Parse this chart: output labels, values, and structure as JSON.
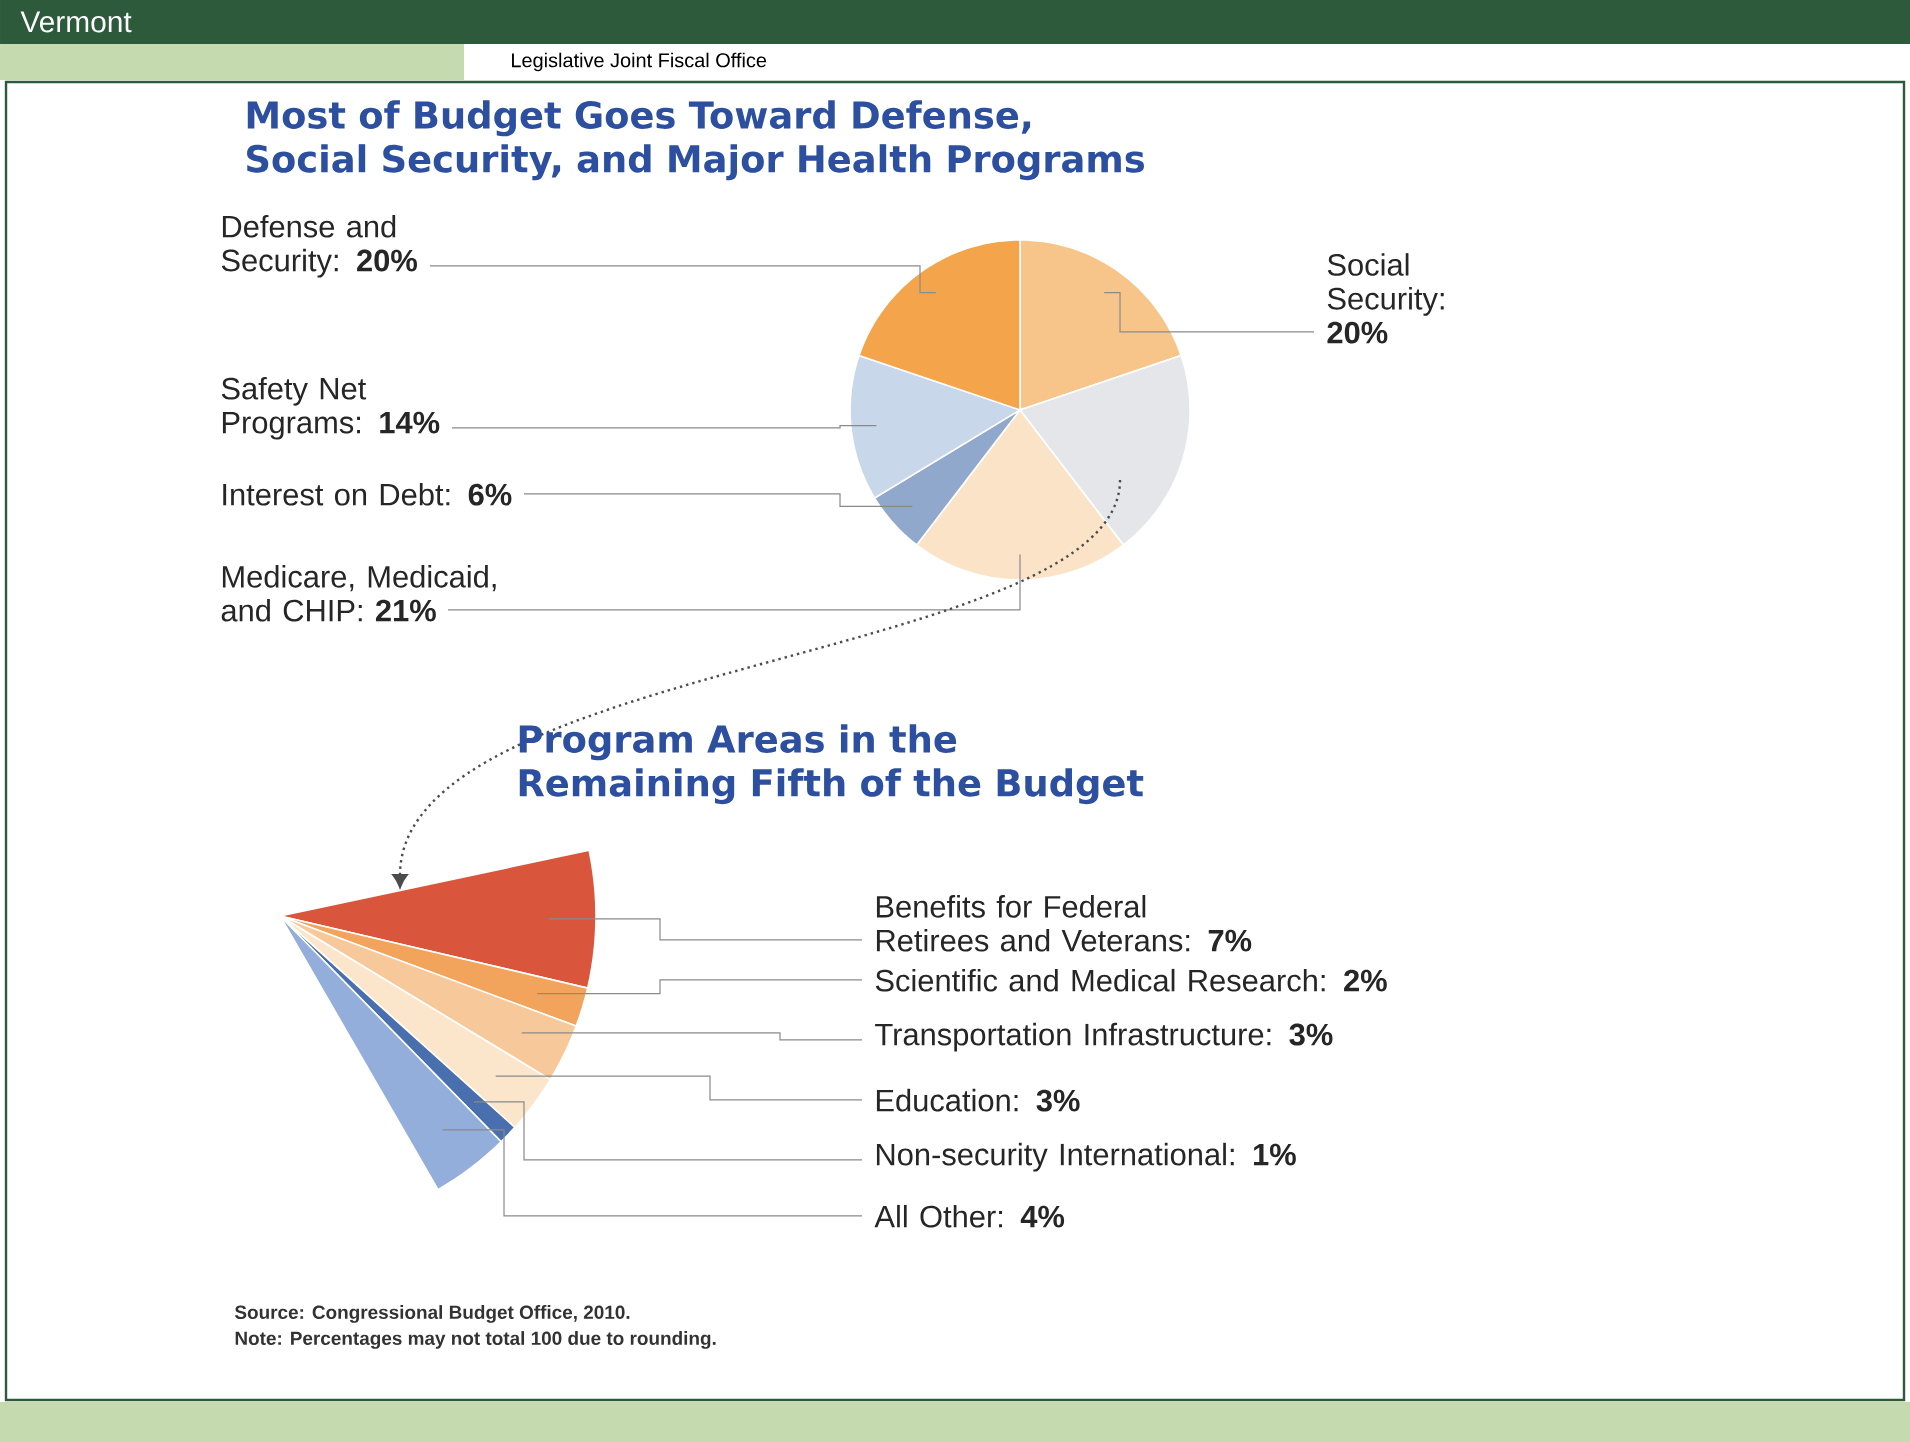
{
  "chart_data": [
    {
      "type": "pie",
      "title": "Most of Budget Goes Toward Defense, Social Security, and Major Health Programs",
      "categories": [
        "Social Security: **20%**",
        null,
        "Medicare, Medicaid, and CHIP: **21%**",
        "Interest on Debt: **6%**",
        "Safety Net Programs: **14%**",
        "Defense and Security: **20%**"
      ],
      "values": [
        20,
        20,
        21,
        6,
        14,
        20
      ],
      "colors": [
        "#f7c58a",
        "#e4e6ea",
        "#fbe3c8",
        "#8fa8cc",
        "#c9d7ea",
        "#f4a54c"
      ],
      "annotations": [
        "Vermont",
        "Legislative Joint Fiscal Office"
      ]
    },
    {
      "type": "pie",
      "title": "Program Areas in the Remaining Fifth of the Budget",
      "categories": [
        "Benefits for Federal Retirees and Veterans: **7%**",
        "Scientific and Medical Research: **2%**",
        "Transportation Infrastructure: **3%**",
        "Education: **3%**",
        "Non-security International: **1%**",
        "All Other: **4%**"
      ],
      "values": [
        7,
        2,
        3,
        3,
        1,
        4
      ],
      "colors": [
        "#d9553b",
        "#f2a45c",
        "#f7c89a",
        "#fbe6cc",
        "#4a6fae",
        "#93aedb"
      ],
      "annotations": [
        "Source: Congressional Budget Office, 2010.",
        "Note: Percentages may not total 100 due to rounding."
      ]
    }
  ]
}
